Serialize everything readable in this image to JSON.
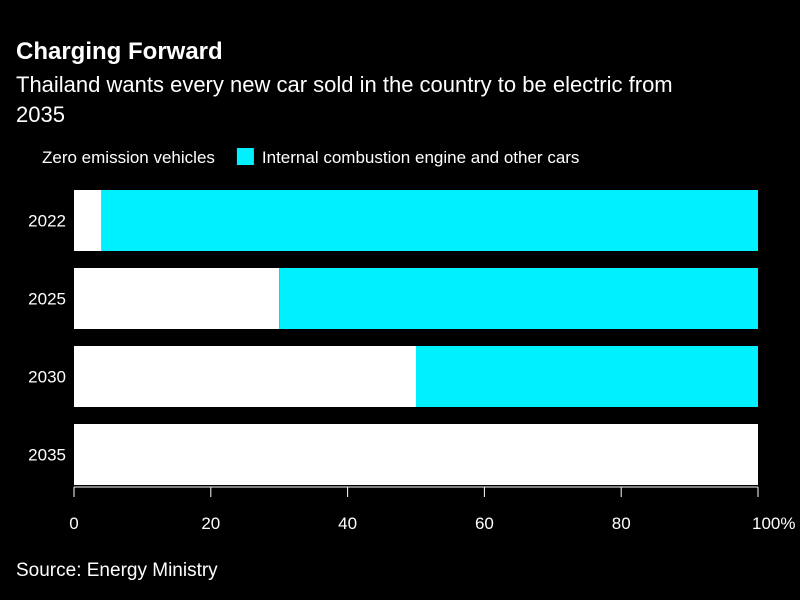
{
  "chart_data": {
    "type": "bar",
    "orientation": "horizontal",
    "stacked": true,
    "title": "Charging Forward",
    "subtitle_lines": [
      "Thailand wants every new car sold in the country to be electric from",
      "2035"
    ],
    "categories": [
      "2022",
      "2025",
      "2030",
      "2035"
    ],
    "series": [
      {
        "name": "Zero emission vehicles",
        "color": "#ffffff",
        "values": [
          4,
          30,
          50,
          100
        ]
      },
      {
        "name": "Internal combustion engine and other cars",
        "color": "#00f0ff",
        "values": [
          96,
          70,
          50,
          0
        ]
      }
    ],
    "xlim": [
      0,
      100
    ],
    "x_ticks": [
      {
        "value": 0,
        "label": "0"
      },
      {
        "value": 20,
        "label": "20"
      },
      {
        "value": 40,
        "label": "40"
      },
      {
        "value": 60,
        "label": "60"
      },
      {
        "value": 80,
        "label": "80"
      },
      {
        "value": 100,
        "label": "100%"
      }
    ],
    "grid": false,
    "legend_position": "top-left",
    "source": "Source: Energy Ministry"
  }
}
